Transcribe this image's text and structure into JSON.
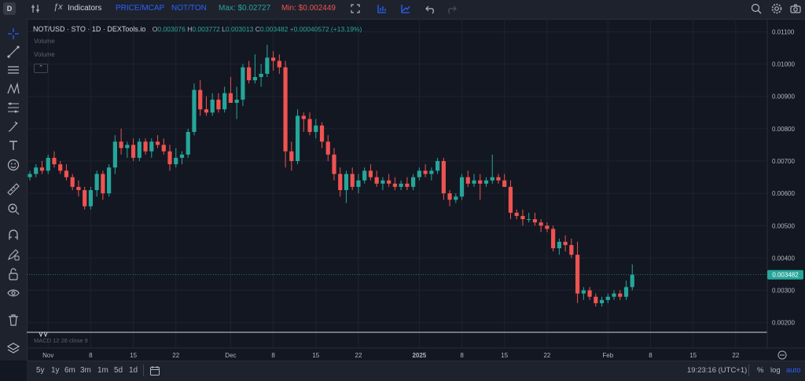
{
  "toolbar": {
    "symbol_badge": "D",
    "indicators_label": "Indicators",
    "price_mcap_label": "PRICE/MCAP",
    "not_ton_label": "NOT/TON",
    "max_label": "Max: $0.02727",
    "min_label": "Min: $0.002449",
    "colors": {
      "active": "#2962ff",
      "max": "#26a69a",
      "min": "#ef5350"
    }
  },
  "legend": {
    "title": "NOT/USD · STO · 1D · DEXTools.io",
    "o_label": "O",
    "o_value": "0.003076",
    "h_label": "H",
    "h_value": "0.003772",
    "l_label": "L",
    "l_value": "0.003013",
    "c_label": "C",
    "c_value": "0.003482",
    "change": "+0.00040572 (+13.19%)",
    "volume_1": "Volume",
    "volume_2": "Volume",
    "collapse_glyph": "⌃"
  },
  "macd_label": "MACD 12 26 close 9",
  "current_price_label": "0.003482",
  "bottom": {
    "timeframes": [
      "5y",
      "1y",
      "6m",
      "3m",
      "1m",
      "5d",
      "1d"
    ],
    "time": "19:23:16 (UTC+1)",
    "percent": "%",
    "log": "log",
    "auto": "auto"
  },
  "chart_data": {
    "type": "candlestick",
    "y_ticks": [
      "0.01100",
      "0.01000",
      "0.00900",
      "0.00800",
      "0.00700",
      "0.00600",
      "0.00500",
      "0.00400",
      "0.00300",
      "0.00200"
    ],
    "y_range": [
      0.0017,
      0.0114
    ],
    "x_ticks": [
      {
        "label": "Nov",
        "i": 3
      },
      {
        "label": "8",
        "i": 10
      },
      {
        "label": "15",
        "i": 17
      },
      {
        "label": "22",
        "i": 24
      },
      {
        "label": "Dec",
        "i": 33
      },
      {
        "label": "8",
        "i": 40
      },
      {
        "label": "15",
        "i": 47
      },
      {
        "label": "22",
        "i": 54
      },
      {
        "label": "2025",
        "i": 64
      },
      {
        "label": "8",
        "i": 71
      },
      {
        "label": "15",
        "i": 78
      },
      {
        "label": "22",
        "i": 85
      },
      {
        "label": "Feb",
        "i": 95
      },
      {
        "label": "8",
        "i": 102
      },
      {
        "label": "15",
        "i": 109
      },
      {
        "label": "22",
        "i": 116
      }
    ],
    "up_color": "#26a69a",
    "down_color": "#ef5350",
    "last_price": 0.003482,
    "candles": [
      [
        0.0065,
        0.0067,
        0.0064,
        0.0066
      ],
      [
        0.0066,
        0.0069,
        0.0065,
        0.0068
      ],
      [
        0.0068,
        0.007,
        0.0066,
        0.0067
      ],
      [
        0.0067,
        0.0072,
        0.0066,
        0.0071
      ],
      [
        0.0071,
        0.0073,
        0.0068,
        0.0069
      ],
      [
        0.0069,
        0.007,
        0.0066,
        0.0067
      ],
      [
        0.0067,
        0.0069,
        0.0064,
        0.0065
      ],
      [
        0.0065,
        0.0066,
        0.0061,
        0.0062
      ],
      [
        0.0062,
        0.0064,
        0.0059,
        0.0061
      ],
      [
        0.0061,
        0.0062,
        0.0055,
        0.0056
      ],
      [
        0.0056,
        0.0062,
        0.0055,
        0.0061
      ],
      [
        0.0061,
        0.0067,
        0.0059,
        0.0066
      ],
      [
        0.0066,
        0.0067,
        0.0058,
        0.006
      ],
      [
        0.006,
        0.0069,
        0.0059,
        0.0068
      ],
      [
        0.0068,
        0.0078,
        0.0066,
        0.0076
      ],
      [
        0.0076,
        0.008,
        0.0072,
        0.0074
      ],
      [
        0.0074,
        0.0076,
        0.0071,
        0.0075
      ],
      [
        0.0075,
        0.0077,
        0.007,
        0.0071
      ],
      [
        0.0071,
        0.0077,
        0.007,
        0.0076
      ],
      [
        0.0076,
        0.0077,
        0.0072,
        0.0073
      ],
      [
        0.0073,
        0.0077,
        0.0071,
        0.0076
      ],
      [
        0.0076,
        0.0078,
        0.0074,
        0.0075
      ],
      [
        0.0075,
        0.0077,
        0.0072,
        0.0073
      ],
      [
        0.0073,
        0.0075,
        0.0067,
        0.0069
      ],
      [
        0.0069,
        0.0074,
        0.0068,
        0.0071
      ],
      [
        0.0071,
        0.0073,
        0.0069,
        0.0072
      ],
      [
        0.0072,
        0.008,
        0.0071,
        0.0079
      ],
      [
        0.0079,
        0.0094,
        0.0078,
        0.0092
      ],
      [
        0.0092,
        0.0095,
        0.0084,
        0.0086
      ],
      [
        0.0086,
        0.009,
        0.0084,
        0.0085
      ],
      [
        0.0085,
        0.0091,
        0.0084,
        0.0089
      ],
      [
        0.0089,
        0.0091,
        0.0085,
        0.0086
      ],
      [
        0.0086,
        0.0093,
        0.0085,
        0.0091
      ],
      [
        0.0091,
        0.0096,
        0.0088,
        0.0088
      ],
      [
        0.0088,
        0.0093,
        0.0083,
        0.0089
      ],
      [
        0.0089,
        0.01,
        0.0087,
        0.0099
      ],
      [
        0.0099,
        0.0101,
        0.0094,
        0.0095
      ],
      [
        0.0095,
        0.0103,
        0.0094,
        0.0096
      ],
      [
        0.0096,
        0.01,
        0.0093,
        0.0097
      ],
      [
        0.0097,
        0.0106,
        0.0096,
        0.0102
      ],
      [
        0.0102,
        0.0104,
        0.0098,
        0.0101
      ],
      [
        0.0101,
        0.0103,
        0.0097,
        0.0099
      ],
      [
        0.0099,
        0.0101,
        0.0068,
        0.0073
      ],
      [
        0.0073,
        0.0076,
        0.0067,
        0.007
      ],
      [
        0.007,
        0.0086,
        0.0069,
        0.0084
      ],
      [
        0.0084,
        0.0085,
        0.0079,
        0.0083
      ],
      [
        0.0083,
        0.0085,
        0.0078,
        0.0079
      ],
      [
        0.0079,
        0.0083,
        0.0077,
        0.0081
      ],
      [
        0.0081,
        0.0082,
        0.0074,
        0.0076
      ],
      [
        0.0076,
        0.0078,
        0.007,
        0.0072
      ],
      [
        0.0072,
        0.0074,
        0.0064,
        0.0066
      ],
      [
        0.0066,
        0.0068,
        0.0059,
        0.0061
      ],
      [
        0.0061,
        0.0067,
        0.0057,
        0.0066
      ],
      [
        0.0066,
        0.0068,
        0.0061,
        0.0062
      ],
      [
        0.0062,
        0.0066,
        0.006,
        0.0064
      ],
      [
        0.0064,
        0.0068,
        0.0063,
        0.0067
      ],
      [
        0.0067,
        0.0069,
        0.0064,
        0.0065
      ],
      [
        0.0065,
        0.0067,
        0.0062,
        0.0063
      ],
      [
        0.0063,
        0.0065,
        0.0061,
        0.0064
      ],
      [
        0.0064,
        0.0066,
        0.0062,
        0.0063
      ],
      [
        0.0063,
        0.0065,
        0.0061,
        0.0062
      ],
      [
        0.0062,
        0.0064,
        0.0061,
        0.0063
      ],
      [
        0.0063,
        0.0065,
        0.0061,
        0.0062
      ],
      [
        0.0062,
        0.0066,
        0.0061,
        0.0065
      ],
      [
        0.0065,
        0.0068,
        0.0064,
        0.0067
      ],
      [
        0.0067,
        0.0069,
        0.0065,
        0.0066
      ],
      [
        0.0066,
        0.0068,
        0.0064,
        0.0067
      ],
      [
        0.0067,
        0.0071,
        0.0066,
        0.007
      ],
      [
        0.007,
        0.0071,
        0.0058,
        0.006
      ],
      [
        0.006,
        0.0061,
        0.0056,
        0.0058
      ],
      [
        0.0058,
        0.006,
        0.0057,
        0.0059
      ],
      [
        0.0059,
        0.0066,
        0.0058,
        0.0065
      ],
      [
        0.0065,
        0.0067,
        0.0062,
        0.0063
      ],
      [
        0.0063,
        0.0066,
        0.0062,
        0.0064
      ],
      [
        0.0064,
        0.0066,
        0.0058,
        0.0063
      ],
      [
        0.0063,
        0.0065,
        0.0062,
        0.0064
      ],
      [
        0.0064,
        0.0072,
        0.0063,
        0.0065
      ],
      [
        0.0065,
        0.0066,
        0.0063,
        0.0064
      ],
      [
        0.0064,
        0.0066,
        0.0062,
        0.0062
      ],
      [
        0.0062,
        0.0064,
        0.0052,
        0.0054
      ],
      [
        0.0054,
        0.0055,
        0.0052,
        0.0053
      ],
      [
        0.0053,
        0.0055,
        0.005,
        0.0052
      ],
      [
        0.0052,
        0.0054,
        0.0051,
        0.0052
      ],
      [
        0.0052,
        0.0054,
        0.005,
        0.0051
      ],
      [
        0.0051,
        0.0052,
        0.0048,
        0.005
      ],
      [
        0.005,
        0.0051,
        0.0048,
        0.0049
      ],
      [
        0.0049,
        0.005,
        0.0042,
        0.0043
      ],
      [
        0.0043,
        0.0046,
        0.0041,
        0.0045
      ],
      [
        0.0045,
        0.0047,
        0.0042,
        0.0044
      ],
      [
        0.0044,
        0.0046,
        0.004,
        0.0041
      ],
      [
        0.0041,
        0.0045,
        0.0026,
        0.0029
      ],
      [
        0.0029,
        0.0031,
        0.0027,
        0.003
      ],
      [
        0.003,
        0.0031,
        0.0027,
        0.0028
      ],
      [
        0.0028,
        0.0029,
        0.0025,
        0.0026
      ],
      [
        0.0026,
        0.0028,
        0.0025,
        0.0027
      ],
      [
        0.0027,
        0.0029,
        0.0026,
        0.0028
      ],
      [
        0.0028,
        0.003,
        0.0027,
        0.0029
      ],
      [
        0.0029,
        0.003,
        0.0027,
        0.0028
      ],
      [
        0.0028,
        0.0033,
        0.0027,
        0.0031
      ],
      [
        0.0031,
        0.0038,
        0.003,
        0.00348
      ]
    ]
  }
}
